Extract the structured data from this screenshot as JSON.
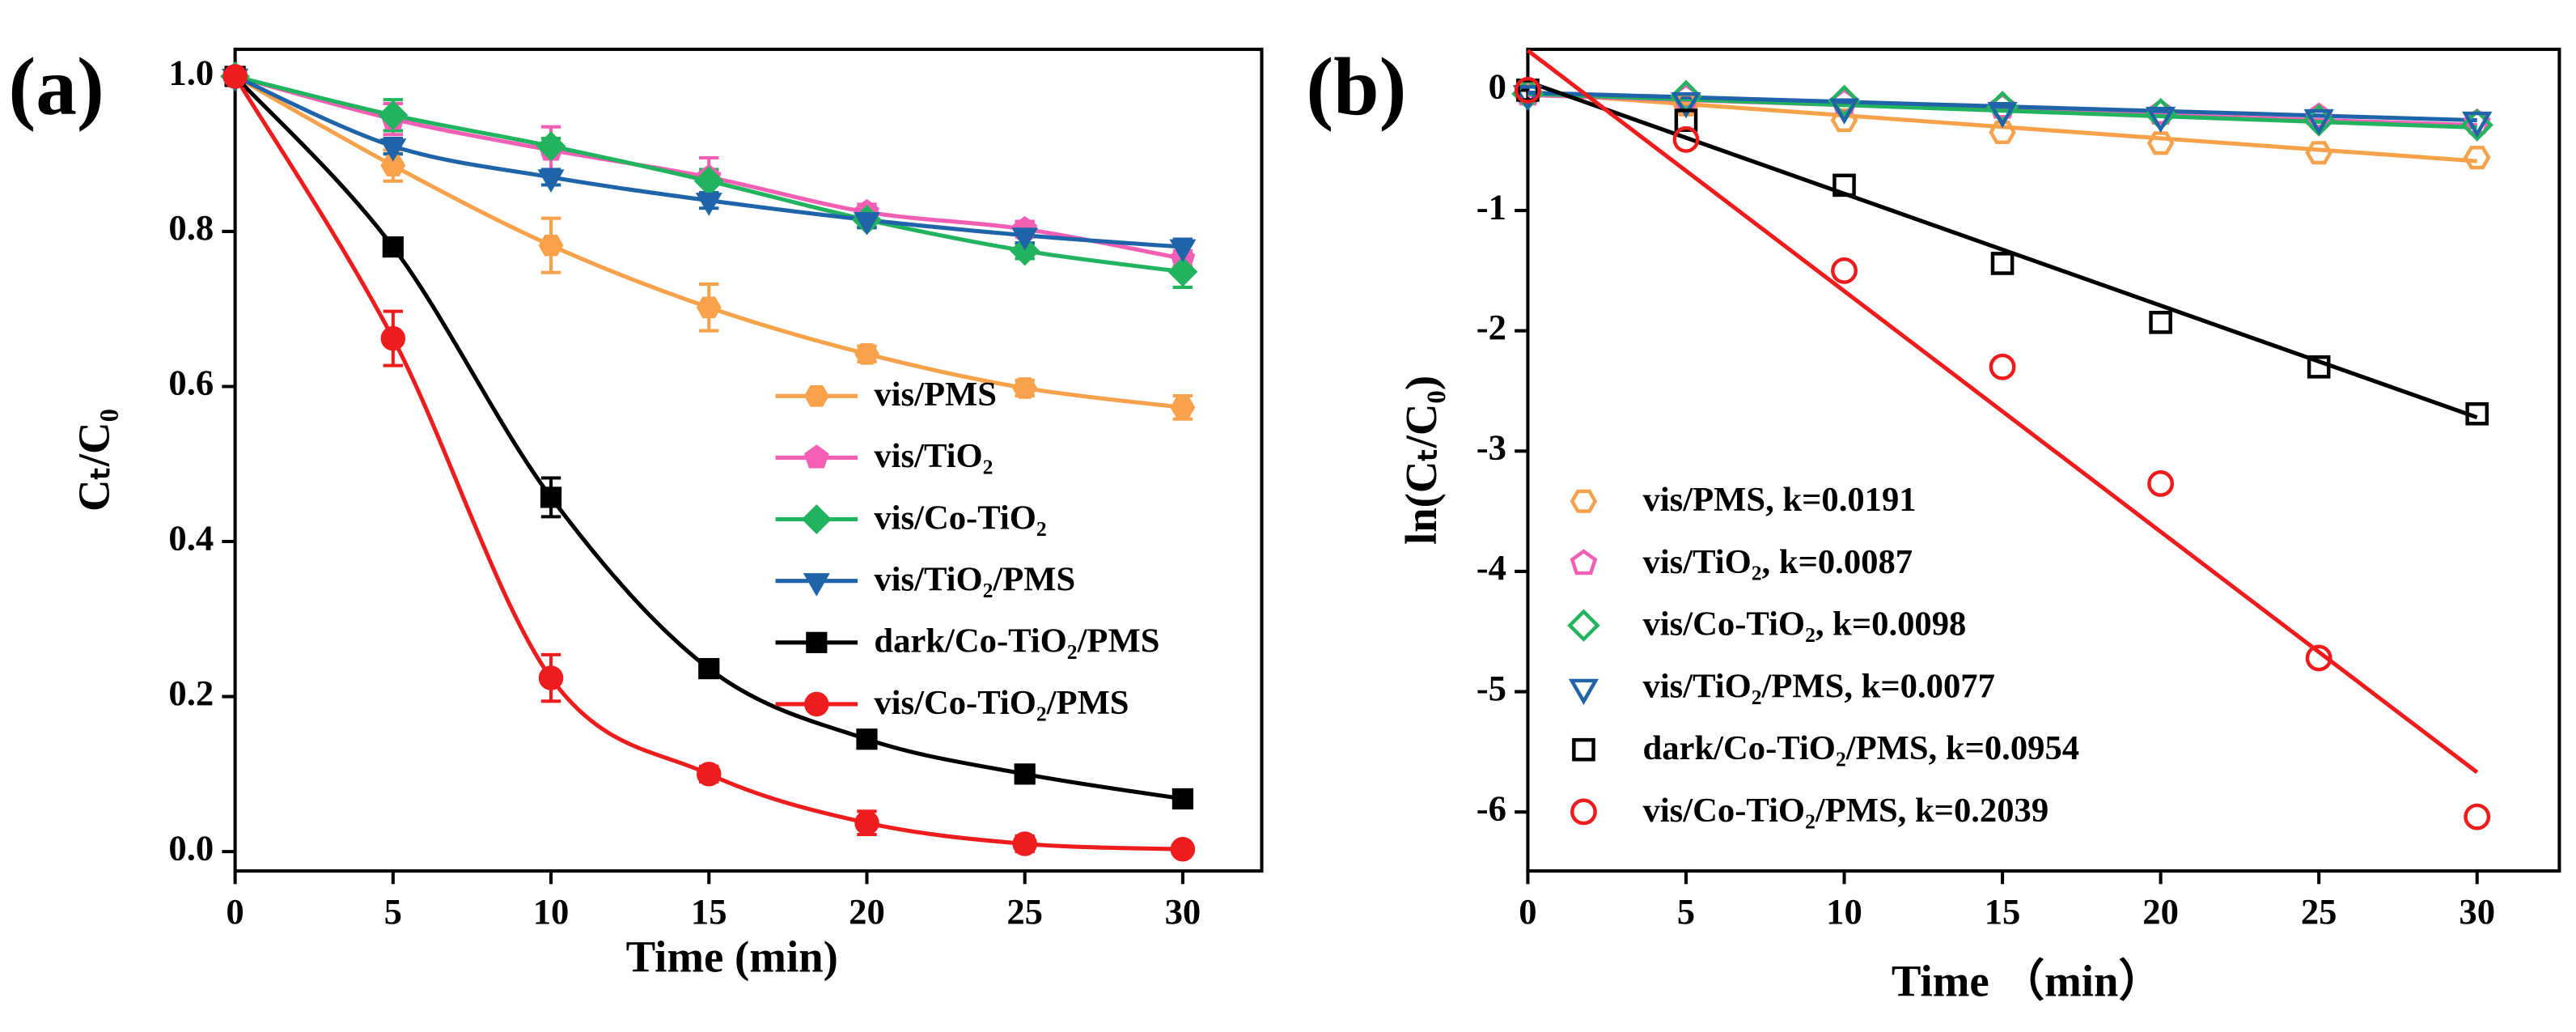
{
  "chart_data": [
    {
      "type": "line",
      "panel_label": "(a)",
      "xlabel": "Time (min)",
      "ylabel": "Cₜ/C₀",
      "x": [
        0,
        5,
        10,
        15,
        20,
        25,
        30
      ],
      "xlim": [
        0,
        32.5
      ],
      "xticks": [
        0,
        5,
        10,
        15,
        20,
        25,
        30
      ],
      "ylim": [
        -0.025,
        1.035
      ],
      "yticks": [
        {
          "value": 0,
          "label": "0.0"
        },
        0.2,
        0.4,
        0.6,
        0.8,
        {
          "value": 1,
          "label": "1.0"
        }
      ],
      "legend": "center right",
      "series": [
        {
          "name": "vis/PMS",
          "color": "#f7a24a",
          "marker": "hexagon",
          "values": [
            1.0,
            0.885,
            0.782,
            0.702,
            0.642,
            0.598,
            0.573
          ],
          "errors": [
            0.005,
            0.02,
            0.035,
            0.03,
            0.01,
            0.01,
            0.015
          ]
        },
        {
          "name": "vis/TiO₂",
          "color": "#f25fb5",
          "marker": "pentagon",
          "values": [
            1.0,
            0.945,
            0.905,
            0.87,
            0.825,
            0.803,
            0.765
          ],
          "errors": [
            0.005,
            0.02,
            0.03,
            0.025,
            0.01,
            0.01,
            0.01
          ]
        },
        {
          "name": "vis/Co-TiO₂",
          "color": "#22b35e",
          "marker": "diamond",
          "values": [
            1.0,
            0.95,
            0.91,
            0.865,
            0.815,
            0.775,
            0.748
          ],
          "errors": [
            0.005,
            0.02,
            0.01,
            0.015,
            0.01,
            0.01,
            0.02
          ]
        },
        {
          "name": "vis/TiO₂/PMS",
          "color": "#1f63a8",
          "marker": "triangle-down",
          "values": [
            1.0,
            0.91,
            0.87,
            0.84,
            0.815,
            0.795,
            0.78
          ],
          "errors": [
            0.005,
            0.01,
            0.01,
            0.01,
            0.01,
            0.01,
            0.01
          ]
        },
        {
          "name": "dark/Co-TiO₂/PMS",
          "color": "#000000",
          "marker": "square",
          "values": [
            1.0,
            0.78,
            0.457,
            0.236,
            0.145,
            0.1,
            0.068
          ],
          "errors": [
            0.005,
            0.01,
            0.025,
            0.01,
            0.01,
            0.01,
            0.01
          ]
        },
        {
          "name": "vis/Co-TiO₂/PMS",
          "color": "#ee1c1c",
          "marker": "circle",
          "values": [
            1.0,
            0.662,
            0.224,
            0.1,
            0.037,
            0.01,
            0.003
          ],
          "errors": [
            0.005,
            0.035,
            0.03,
            0.01,
            0.015,
            0.01,
            0.005
          ]
        }
      ]
    },
    {
      "type": "scatter",
      "panel_label": "(b)",
      "xlabel": "Time （min）",
      "ylabel": "ln(Cₜ/C₀)",
      "x": [
        0,
        5,
        10,
        15,
        20,
        25,
        30
      ],
      "fit_x": [
        0,
        30
      ],
      "xlim": [
        0,
        32.6
      ],
      "xticks": [
        0,
        5,
        10,
        15,
        20,
        25,
        30
      ],
      "ylim": [
        -6.49,
        0.34
      ],
      "yticks": [
        0,
        -1,
        -2,
        -3,
        -4,
        -5,
        -6
      ],
      "legend": "lower left",
      "series": [
        {
          "name": "vis/PMS, k=0.0191",
          "color": "#f7a24a",
          "marker": "hexagon",
          "values": [
            -0.03,
            -0.12,
            -0.25,
            -0.35,
            -0.44,
            -0.52,
            -0.56
          ],
          "fit_values": [
            -0.02,
            -0.59
          ]
        },
        {
          "name": "vis/TiO₂, k=0.0087",
          "color": "#f25fb5",
          "marker": "pentagon",
          "values": [
            -0.03,
            -0.06,
            -0.1,
            -0.14,
            -0.19,
            -0.22,
            -0.27
          ],
          "fit_values": [
            -0.04,
            -0.29
          ]
        },
        {
          "name": "vis/Co-TiO₂, k=0.0098",
          "color": "#22b35e",
          "marker": "diamond",
          "values": [
            -0.03,
            -0.05,
            -0.09,
            -0.14,
            -0.2,
            -0.25,
            -0.29
          ],
          "fit_values": [
            -0.03,
            -0.31
          ]
        },
        {
          "name": "vis/TiO₂/PMS, k=0.0077",
          "color": "#1f63a8",
          "marker": "triangle-down",
          "values": [
            -0.03,
            -0.09,
            -0.14,
            -0.17,
            -0.21,
            -0.23,
            -0.25
          ],
          "fit_values": [
            -0.02,
            -0.25
          ]
        },
        {
          "name": "dark/Co-TiO₂/PMS, k=0.0954",
          "color": "#000000",
          "marker": "square",
          "values": [
            0,
            -0.25,
            -0.79,
            -1.44,
            -1.93,
            -2.3,
            -2.69
          ],
          "fit_values": [
            0.07,
            -2.72
          ]
        },
        {
          "name": "vis/Co-TiO₂/PMS, k=0.2039",
          "color": "#ee1c1c",
          "marker": "circle",
          "values": [
            0,
            -0.41,
            -1.5,
            -2.3,
            -3.27,
            -4.72,
            -6.04
          ],
          "fit_values": [
            0.33,
            -5.67
          ]
        }
      ]
    }
  ]
}
